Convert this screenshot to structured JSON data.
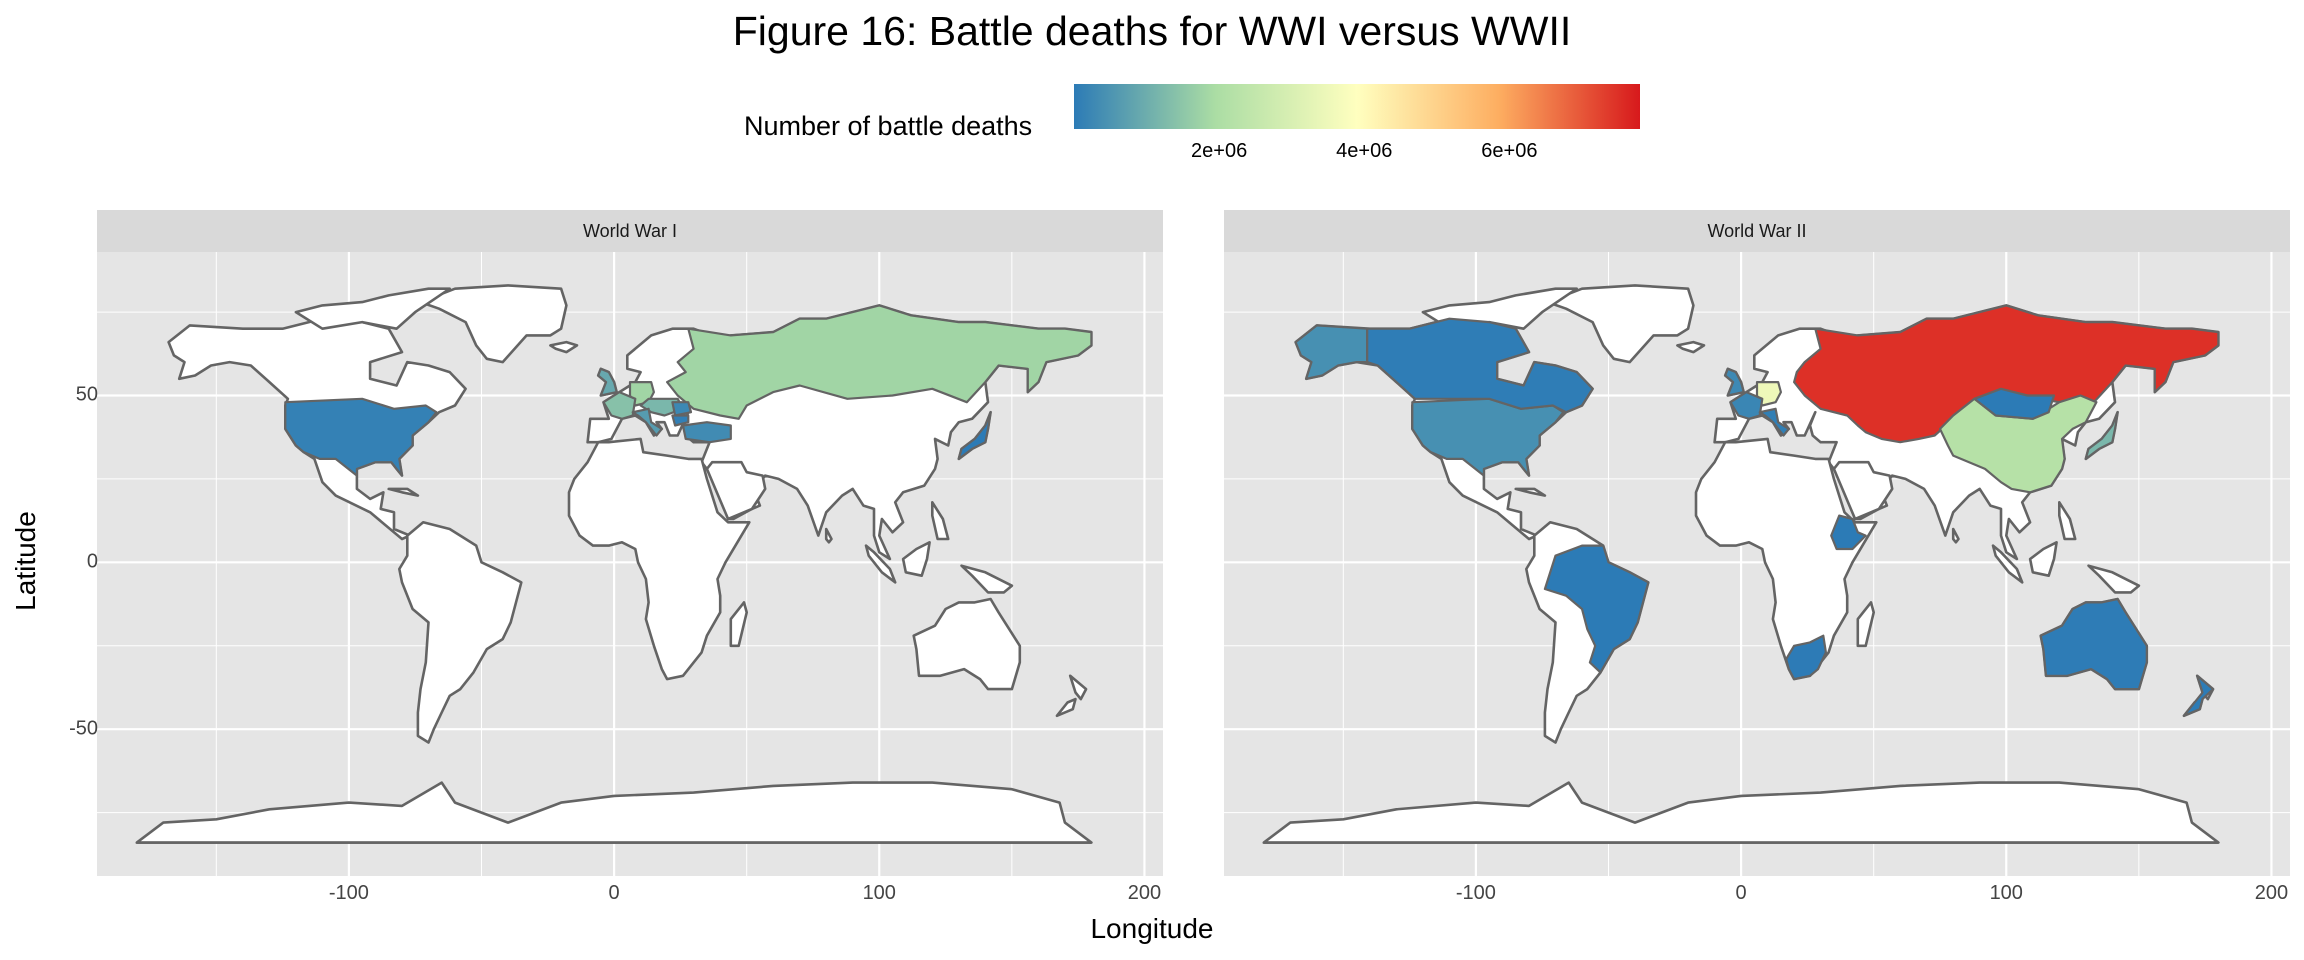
{
  "title": "Figure 16: Battle deaths for WWI versus WWII",
  "legend": {
    "title": "Number of battle deaths",
    "ticks": [
      {
        "value": 2000000,
        "label": "2e+06"
      },
      {
        "value": 4000000,
        "label": "4e+06"
      },
      {
        "value": 6000000,
        "label": "6e+06"
      }
    ],
    "min": 0,
    "max": 7800000,
    "palette": [
      "#2c7bb6",
      "#abdda4",
      "#ffffbf",
      "#fdae61",
      "#d7191c"
    ]
  },
  "axes": {
    "xlabel": "Longitude",
    "ylabel": "Latitude",
    "xlim": [
      -195,
      207
    ],
    "ylim": [
      -94,
      93
    ],
    "xticks": [
      {
        "value": -100,
        "label": "-100"
      },
      {
        "value": 0,
        "label": "0"
      },
      {
        "value": 100,
        "label": "100"
      },
      {
        "value": 200,
        "label": "200"
      }
    ],
    "yticks": [
      {
        "value": 50,
        "label": "50"
      },
      {
        "value": 0,
        "label": "0"
      },
      {
        "value": -50,
        "label": "-50"
      }
    ]
  },
  "colors": {
    "panel_bg": "#e5e5e5",
    "grid": "#ffffff",
    "border": "#646464",
    "land": "#ffffff"
  },
  "chart_data": [
    {
      "type": "heatmap",
      "panel": "World War I",
      "regions": [
        {
          "name": "Russia",
          "value": 1800000
        },
        {
          "name": "Germany",
          "value": 1800000
        },
        {
          "name": "France",
          "value": 1400000
        },
        {
          "name": "Austria-Hungary",
          "value": 1200000
        },
        {
          "name": "United Kingdom",
          "value": 900000
        },
        {
          "name": "Italy",
          "value": 650000
        },
        {
          "name": "Turkey",
          "value": 325000
        },
        {
          "name": "United States",
          "value": 126000
        },
        {
          "name": "Japan",
          "value": 300
        },
        {
          "name": "Romania",
          "value": 250000
        },
        {
          "name": "Bulgaria",
          "value": 88000
        }
      ]
    },
    {
      "type": "heatmap",
      "panel": "World War II",
      "regions": [
        {
          "name": "Soviet Union",
          "value": 7500000
        },
        {
          "name": "Germany",
          "value": 3500000
        },
        {
          "name": "China",
          "value": 2200000
        },
        {
          "name": "Japan",
          "value": 1200000
        },
        {
          "name": "United States",
          "value": 408000
        },
        {
          "name": "Alaska",
          "value": 408000
        },
        {
          "name": "Canada",
          "value": 39000
        },
        {
          "name": "Brazil",
          "value": 1000
        },
        {
          "name": "Australia",
          "value": 29000
        },
        {
          "name": "New Zealand",
          "value": 17000
        },
        {
          "name": "South Africa",
          "value": 9000
        },
        {
          "name": "Ethiopia",
          "value": 5000
        },
        {
          "name": "Mongolia",
          "value": 3000
        },
        {
          "name": "United Kingdom",
          "value": 270000
        },
        {
          "name": "France",
          "value": 210000
        },
        {
          "name": "Italy",
          "value": 77000
        }
      ]
    }
  ]
}
